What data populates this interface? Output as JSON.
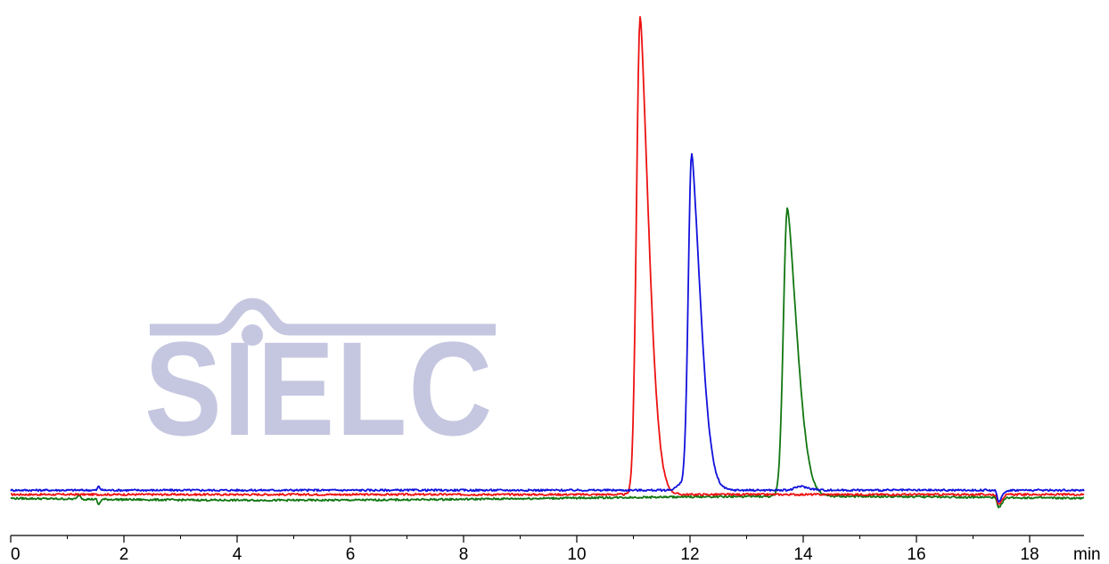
{
  "chart_data": {
    "type": "line",
    "title": "",
    "xlabel": "min",
    "ylabel": "",
    "xlim": [
      0,
      19
    ],
    "ylim": [
      -0.02,
      1.02
    ],
    "x_ticks": [
      "0",
      "2",
      "4",
      "6",
      "8",
      "10",
      "12",
      "14",
      "16",
      "18"
    ],
    "grid": false,
    "legend": "none",
    "series": [
      {
        "color": "#ee1111",
        "baseline": 0.0,
        "peaks": [
          {
            "rt": 11.12,
            "height": 1.0,
            "width": 0.13,
            "tail": 0.14
          },
          {
            "rt": 17.45,
            "height": -0.02,
            "width": 0.05,
            "tail": 0.05
          }
        ]
      },
      {
        "color": "#1111dd",
        "baseline": 0.009,
        "peaks": [
          {
            "rt": 1.55,
            "height": 0.008,
            "width": 0.03,
            "tail": 0.02
          },
          {
            "rt": 11.85,
            "height": 0.012,
            "width": 0.18,
            "tail": 0.1
          },
          {
            "rt": 12.03,
            "height": 0.7,
            "width": 0.12,
            "tail": 0.15
          },
          {
            "rt": 13.95,
            "height": 0.008,
            "width": 0.18,
            "tail": 0.1
          },
          {
            "rt": 17.45,
            "height": -0.025,
            "width": 0.05,
            "tail": 0.05
          }
        ]
      },
      {
        "color": "#117711",
        "baseline": -0.008,
        "peaks": [
          {
            "rt": 1.2,
            "height": 0.01,
            "width": 0.04,
            "tail": 0.02
          },
          {
            "rt": 1.55,
            "height": -0.012,
            "width": 0.03,
            "tail": 0.02
          },
          {
            "rt": 13.72,
            "height": 0.605,
            "width": 0.14,
            "tail": 0.16
          },
          {
            "rt": 17.45,
            "height": -0.022,
            "width": 0.05,
            "tail": 0.05
          }
        ]
      }
    ]
  },
  "watermark": {
    "text": "SIELC"
  }
}
